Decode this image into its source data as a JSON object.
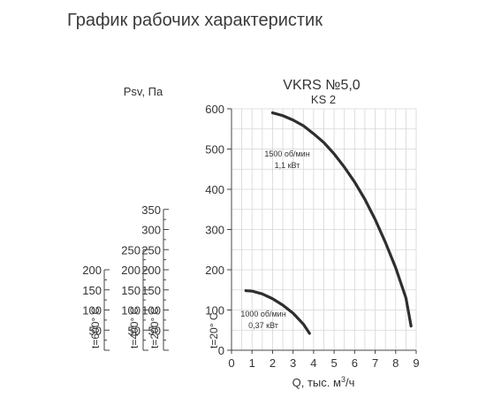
{
  "page_title": "График рабочих характеристик",
  "chart_data": {
    "type": "line",
    "title": "VKRS №5,0",
    "subtitle": "KS 2",
    "xlabel": "Q, тыс. м³/ч",
    "ylabel": "Psv, Па",
    "xlim": [
      0,
      9
    ],
    "ylim": [
      0,
      600
    ],
    "x_ticks": [
      "0",
      "1",
      "2",
      "3",
      "4",
      "5",
      "6",
      "7",
      "8",
      "9"
    ],
    "y_ticks": [
      "0",
      "100",
      "200",
      "300",
      "400",
      "500",
      "600"
    ],
    "grid": true,
    "series": [
      {
        "name": "1500 об/мин 1,1 кВт",
        "label_lines": [
          "1500 об/мин",
          "1,1 кВт"
        ],
        "x": [
          2.0,
          2.5,
          3.0,
          3.5,
          4.0,
          4.5,
          5.0,
          5.5,
          6.0,
          6.5,
          7.0,
          7.5,
          8.0,
          8.5,
          8.75
        ],
        "y": [
          590,
          583,
          572,
          558,
          538,
          516,
          488,
          455,
          418,
          375,
          325,
          268,
          205,
          130,
          60
        ]
      },
      {
        "name": "1000 об/мин 0,37 кВт",
        "label_lines": [
          "1000 об/мин",
          "0,37 кВт"
        ],
        "x": [
          0.7,
          1.0,
          1.5,
          2.0,
          2.5,
          3.0,
          3.5,
          3.8
        ],
        "y": [
          148,
          147,
          140,
          128,
          112,
          92,
          65,
          42
        ]
      }
    ],
    "temperature_scales": [
      {
        "temperature": "t=20° C",
        "ticks": [
          "0",
          "100",
          "200",
          "300",
          "400",
          "500",
          "600"
        ]
      },
      {
        "temperature": "t=200° C",
        "ticks": [
          "0",
          "50",
          "100",
          "150",
          "200",
          "250",
          "300",
          "350"
        ]
      },
      {
        "temperature": "t=400° C",
        "ticks": [
          "0",
          "50",
          "100",
          "150",
          "200",
          "250"
        ]
      },
      {
        "temperature": "t=600° C",
        "ticks": [
          "0",
          "50",
          "100",
          "150",
          "200"
        ]
      }
    ]
  }
}
